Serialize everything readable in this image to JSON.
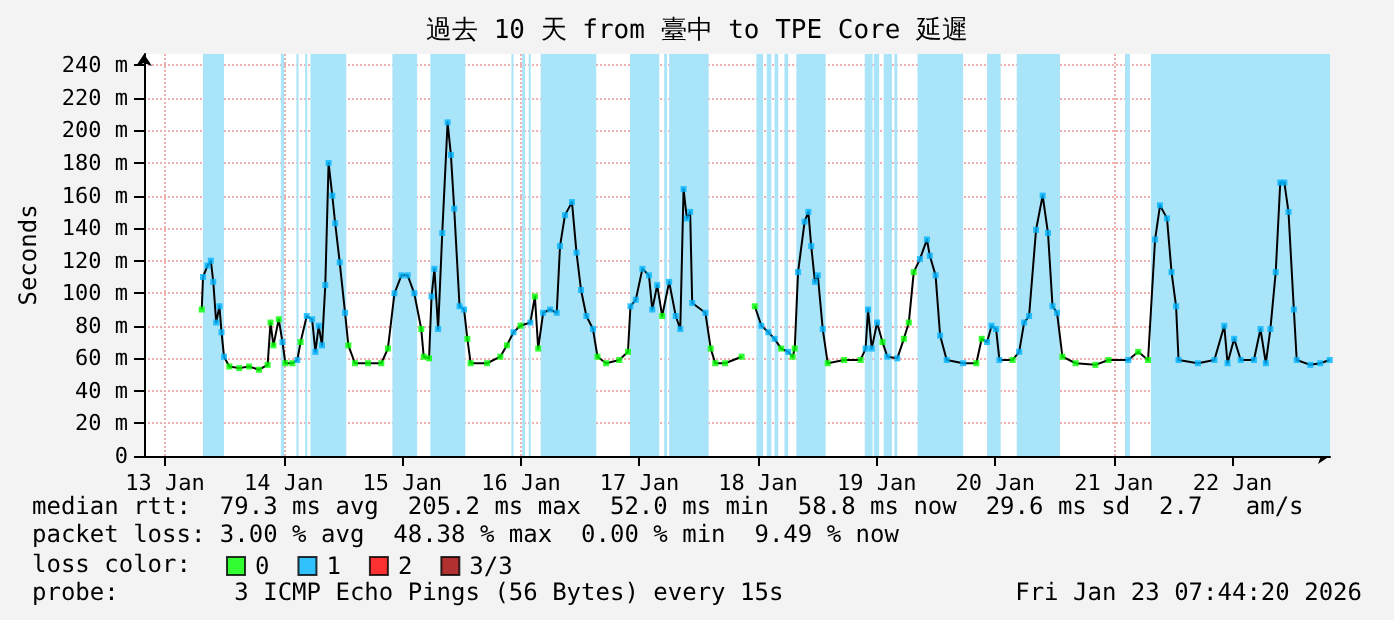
{
  "chart_data": {
    "type": "line",
    "title": "過去 10 天 from 臺中 to TPE Core 延遲",
    "ylabel": "Seconds",
    "legend_title": "loss color:",
    "legend": "bottom left",
    "grid": true,
    "marker": "square",
    "xlim": [
      "2026-01-13T07:44",
      "2026-01-23T07:44"
    ],
    "xticks": [
      {
        "value": "2026-01-13T12:00",
        "label": "13 Jan"
      },
      {
        "value": "2026-01-14T12:00",
        "label": "14 Jan"
      },
      {
        "value": "2026-01-15T12:00",
        "label": "15 Jan"
      },
      {
        "value": "2026-01-16T12:00",
        "label": "16 Jan"
      },
      {
        "value": "2026-01-17T12:00",
        "label": "17 Jan"
      },
      {
        "value": "2026-01-18T12:00",
        "label": "18 Jan"
      },
      {
        "value": "2026-01-19T12:00",
        "label": "19 Jan"
      },
      {
        "value": "2026-01-20T12:00",
        "label": "20 Jan"
      },
      {
        "value": "2026-01-21T12:00",
        "label": "21 Jan"
      },
      {
        "value": "2026-01-22T12:00",
        "label": "22 Jan"
      }
    ],
    "ylim": [
      0,
      247
    ],
    "yticks": [
      0,
      {
        "value": 20,
        "label": "20 m"
      },
      {
        "value": 40,
        "label": "40 m"
      },
      {
        "value": 60,
        "label": "60 m"
      },
      {
        "value": 80,
        "label": "80 m"
      },
      {
        "value": 100,
        "label": "100 m"
      },
      {
        "value": 120,
        "label": "120 m"
      },
      {
        "value": 140,
        "label": "140 m"
      },
      {
        "value": 160,
        "label": "160 m"
      },
      {
        "value": 180,
        "label": "180 m"
      },
      {
        "value": 200,
        "label": "200 m"
      },
      {
        "value": 220,
        "label": "220 m"
      },
      {
        "value": 240,
        "label": "240 m"
      }
    ],
    "annotations": [
      "median rtt:  79.3 ms avg  205.2 ms max  52.0 ms min  58.8 ms now  29.6 ms sd  2.7   am/s",
      "packet loss: 3.00 % avg  48.38 % max  0.00 % min  9.49 % now",
      "probe:        3 ICMP Echo Pings (56 Bytes) every 15s",
      "Fri Jan 23 07:44:20 2026"
    ],
    "x": [
      "2026-01-13T19:25",
      "2026-01-13T19:40",
      "2026-01-13T20:35",
      "2026-01-13T21:15",
      "2026-01-13T21:45",
      "2026-01-13T22:20",
      "2026-01-13T23:00",
      "2026-01-13T23:25",
      "2026-01-13T23:55",
      "2026-01-14T01:00",
      "2026-01-14T03:00",
      "2026-01-14T05:00",
      "2026-01-14T07:00",
      "2026-01-14T08:45",
      "2026-01-14T09:20",
      "2026-01-14T09:55",
      "2026-01-14T11:00",
      "2026-01-14T11:45",
      "2026-01-14T12:20",
      "2026-01-14T13:45",
      "2026-01-14T14:45",
      "2026-01-14T15:25",
      "2026-01-14T16:40",
      "2026-01-14T17:45",
      "2026-01-14T18:25",
      "2026-01-14T19:05",
      "2026-01-14T19:45",
      "2026-01-14T20:25",
      "2026-01-14T21:05",
      "2026-01-14T21:50",
      "2026-01-14T22:25",
      "2026-01-14T23:20",
      "2026-01-15T00:25",
      "2026-01-15T01:05",
      "2026-01-15T02:25",
      "2026-01-15T05:05",
      "2026-01-15T07:45",
      "2026-01-15T09:05",
      "2026-01-15T10:25",
      "2026-01-15T11:50",
      "2026-01-15T13:05",
      "2026-01-15T14:25",
      "2026-01-15T15:50",
      "2026-01-15T16:20",
      "2026-01-15T17:25",
      "2026-01-15T17:55",
      "2026-01-15T18:30",
      "2026-01-15T19:15",
      "2026-01-15T20:05",
      "2026-01-15T21:10",
      "2026-01-15T21:50",
      "2026-01-15T22:30",
      "2026-01-15T23:35",
      "2026-01-16T00:30",
      "2026-01-16T01:10",
      "2026-01-16T01:50",
      "2026-01-16T05:10",
      "2026-01-16T07:50",
      "2026-01-16T09:10",
      "2026-01-16T10:30",
      "2026-01-16T11:55",
      "2026-01-16T13:55",
      "2026-01-16T14:50",
      "2026-01-16T15:30",
      "2026-01-16T16:30",
      "2026-01-16T17:55",
      "2026-01-16T19:15",
      "2026-01-16T19:55",
      "2026-01-16T20:55",
      "2026-01-16T22:20",
      "2026-01-16T23:15",
      "2026-01-17T00:10",
      "2026-01-17T01:15",
      "2026-01-17T02:35",
      "2026-01-17T03:30",
      "2026-01-17T05:15",
      "2026-01-17T07:55",
      "2026-01-17T09:40",
      "2026-01-17T10:10",
      "2026-01-17T11:15",
      "2026-01-17T12:35",
      "2026-01-17T13:55",
      "2026-01-17T14:35",
      "2026-01-17T15:35",
      "2026-01-17T16:35",
      "2026-01-17T18:00",
      "2026-01-17T19:20",
      "2026-01-17T20:15",
      "2026-01-17T20:55",
      "2026-01-17T21:35",
      "2026-01-17T22:15",
      "2026-01-17T22:40",
      "2026-01-18T01:20",
      "2026-01-18T02:25",
      "2026-01-18T03:20",
      "2026-01-18T05:20",
      "2026-01-18T08:40",
      "2026-01-18T09:20",
      "2026-01-18T11:20",
      "2026-01-18T12:40",
      "2026-01-18T14:05",
      "2026-01-18T15:20",
      "2026-01-18T16:40",
      "2026-01-18T18:05",
      "2026-01-18T19:00",
      "2026-01-18T19:25",
      "2026-01-18T20:05",
      "2026-01-18T21:25",
      "2026-01-18T22:10",
      "2026-01-18T22:45",
      "2026-01-18T23:30",
      "2026-01-19T00:05",
      "2026-01-19T01:05",
      "2026-01-19T02:05",
      "2026-01-19T05:25",
      "2026-01-19T08:45",
      "2026-01-19T09:45",
      "2026-01-19T10:15",
      "2026-01-19T11:00",
      "2026-01-19T12:05",
      "2026-01-19T13:10",
      "2026-01-19T14:10",
      "2026-01-19T16:10",
      "2026-01-19T17:30",
      "2026-01-19T18:30",
      "2026-01-19T19:30",
      "2026-01-19T20:45",
      "2026-01-19T22:10",
      "2026-01-19T22:45",
      "2026-01-19T23:55",
      "2026-01-20T00:50",
      "2026-01-20T02:10",
      "2026-01-20T05:30",
      "2026-01-20T08:10",
      "2026-01-20T09:15",
      "2026-01-20T10:20",
      "2026-01-20T11:15",
      "2026-01-20T12:10",
      "2026-01-20T12:50",
      "2026-01-20T15:30",
      "2026-01-20T16:50",
      "2026-01-20T17:50",
      "2026-01-20T18:50",
      "2026-01-20T20:15",
      "2026-01-20T21:35",
      "2026-01-20T22:40",
      "2026-01-20T23:35",
      "2026-01-21T00:30",
      "2026-01-21T01:35",
      "2026-01-21T04:15",
      "2026-01-21T08:15",
      "2026-01-21T10:55",
      "2026-01-21T14:55",
      "2026-01-21T16:55",
      "2026-01-21T18:55",
      "2026-01-21T20:20",
      "2026-01-21T21:20",
      "2026-01-21T22:45",
      "2026-01-21T23:40",
      "2026-01-22T00:35",
      "2026-01-22T01:05",
      "2026-01-22T05:00",
      "2026-01-22T08:20",
      "2026-01-22T10:20",
      "2026-01-22T11:00",
      "2026-01-22T12:20",
      "2026-01-22T13:40",
      "2026-01-22T16:20",
      "2026-01-22T17:40",
      "2026-01-22T18:45",
      "2026-01-22T19:40",
      "2026-01-22T20:45",
      "2026-01-22T21:40",
      "2026-01-22T22:30",
      "2026-01-22T23:20",
      "2026-01-23T00:25",
      "2026-01-23T01:00",
      "2026-01-23T03:45",
      "2026-01-23T05:45",
      "2026-01-23T07:40"
    ],
    "series": [
      {
        "color": "#000000",
        "marker": "none",
        "values": [
          90,
          110,
          117,
          120,
          107,
          82,
          92,
          76,
          61,
          55,
          54,
          55,
          53,
          56,
          82,
          68,
          84,
          70,
          57,
          57,
          59,
          70,
          86,
          84,
          64,
          80,
          68,
          105,
          180,
          160,
          143,
          119,
          88,
          68,
          57,
          57,
          57,
          66,
          100,
          111,
          111,
          100,
          78,
          61,
          60,
          98,
          115,
          78,
          137,
          205,
          185,
          152,
          92,
          90,
          72,
          57,
          57,
          61,
          68,
          76,
          80,
          82,
          98,
          66,
          88,
          90,
          88,
          129,
          148,
          156,
          125,
          102,
          86,
          78,
          61,
          57,
          59,
          64,
          92,
          96,
          115,
          111,
          90,
          105,
          86,
          107,
          86,
          78,
          164,
          146,
          150,
          94,
          88,
          66,
          57,
          57,
          61,
          null,
          92,
          80,
          76,
          72,
          66,
          64,
          61,
          66,
          113,
          144,
          150,
          129,
          107,
          111,
          78,
          57,
          59,
          59,
          66,
          90,
          66,
          82,
          70,
          61,
          60,
          72,
          82,
          113,
          121,
          133,
          123,
          111,
          74,
          59,
          57,
          57,
          72,
          70,
          80,
          78,
          59,
          59,
          64,
          82,
          86,
          139,
          160,
          137,
          92,
          88,
          61,
          57,
          56,
          59,
          59,
          64,
          59,
          133,
          154,
          146,
          113,
          92,
          59,
          57,
          59,
          80,
          57,
          72,
          59,
          59,
          78,
          57,
          78,
          113,
          168,
          168,
          150,
          90,
          59,
          56,
          57,
          59
        ]
      },
      {
        "type": "scatter",
        "name": "0",
        "color": "#00ff00",
        "values": [
          90,
          null,
          null,
          null,
          null,
          null,
          null,
          null,
          null,
          55,
          54,
          55,
          53,
          56,
          82,
          68,
          84,
          null,
          57,
          57,
          null,
          70,
          null,
          null,
          null,
          null,
          null,
          null,
          null,
          null,
          null,
          null,
          null,
          68,
          57,
          57,
          57,
          66,
          null,
          null,
          null,
          null,
          78,
          61,
          60,
          null,
          null,
          null,
          null,
          null,
          null,
          null,
          null,
          null,
          72,
          57,
          57,
          61,
          68,
          null,
          80,
          null,
          98,
          66,
          null,
          null,
          null,
          null,
          null,
          null,
          null,
          null,
          null,
          null,
          61,
          57,
          59,
          64,
          null,
          null,
          null,
          null,
          null,
          null,
          86,
          null,
          null,
          null,
          null,
          null,
          null,
          null,
          null,
          66,
          57,
          57,
          61,
          null,
          92,
          null,
          null,
          null,
          66,
          null,
          61,
          66,
          null,
          null,
          null,
          null,
          null,
          null,
          null,
          57,
          59,
          59,
          null,
          null,
          null,
          null,
          70,
          null,
          null,
          72,
          82,
          113,
          null,
          null,
          null,
          null,
          null,
          null,
          null,
          57,
          72,
          null,
          null,
          null,
          null,
          59,
          null,
          null,
          null,
          null,
          null,
          null,
          null,
          null,
          61,
          57,
          56,
          59,
          null,
          64,
          59,
          null,
          null,
          null,
          null,
          null,
          null,
          null,
          null,
          null,
          null,
          null,
          null,
          null,
          null,
          null,
          null,
          null,
          null,
          null,
          null,
          null,
          null,
          null,
          null,
          null
        ]
      },
      {
        "type": "scatter",
        "name": "1",
        "color": "#00b4ff",
        "values": [
          null,
          110,
          117,
          120,
          107,
          82,
          92,
          76,
          61,
          null,
          null,
          null,
          null,
          null,
          null,
          null,
          null,
          70,
          null,
          null,
          59,
          null,
          86,
          84,
          64,
          80,
          68,
          105,
          180,
          160,
          143,
          119,
          88,
          null,
          null,
          null,
          null,
          null,
          100,
          111,
          111,
          100,
          null,
          null,
          null,
          98,
          115,
          78,
          137,
          205,
          185,
          152,
          92,
          90,
          null,
          null,
          null,
          null,
          null,
          76,
          null,
          82,
          null,
          null,
          88,
          90,
          88,
          129,
          148,
          156,
          125,
          102,
          86,
          78,
          null,
          null,
          null,
          null,
          92,
          96,
          115,
          111,
          90,
          105,
          null,
          107,
          86,
          78,
          164,
          146,
          150,
          94,
          88,
          null,
          null,
          null,
          null,
          null,
          null,
          80,
          76,
          72,
          null,
          64,
          null,
          null,
          113,
          144,
          150,
          129,
          107,
          111,
          78,
          null,
          null,
          null,
          66,
          90,
          66,
          82,
          null,
          61,
          60,
          null,
          null,
          null,
          121,
          133,
          123,
          111,
          74,
          59,
          57,
          null,
          null,
          70,
          80,
          78,
          59,
          null,
          64,
          82,
          86,
          139,
          160,
          137,
          92,
          88,
          null,
          null,
          null,
          null,
          59,
          null,
          null,
          133,
          154,
          146,
          113,
          92,
          59,
          57,
          59,
          80,
          57,
          72,
          59,
          59,
          78,
          57,
          78,
          113,
          168,
          168,
          150,
          90,
          59,
          56,
          57,
          59
        ]
      },
      {
        "type": "scatter",
        "name": "2",
        "color": "#ff0000",
        "values": [
          null,
          null,
          null,
          null,
          null,
          null,
          null,
          null,
          null,
          null,
          null,
          null,
          null,
          null,
          null,
          null,
          null,
          null,
          null,
          null,
          null,
          null,
          null,
          null,
          null,
          null,
          null,
          null,
          null,
          null,
          null,
          null,
          null,
          null,
          null,
          null,
          null,
          null,
          null,
          null,
          null,
          null,
          null,
          null,
          null,
          null,
          null,
          null,
          null,
          null,
          null,
          null,
          null,
          null,
          null,
          null,
          null,
          null,
          null,
          null,
          null,
          null,
          null,
          null,
          null,
          null,
          null,
          null,
          null,
          null,
          null,
          null,
          null,
          null,
          null,
          null,
          null,
          null,
          null,
          null,
          null,
          null,
          null,
          null,
          null,
          null,
          null,
          null,
          null,
          null,
          null,
          null,
          null,
          null,
          null,
          null,
          null,
          null,
          null,
          null,
          null,
          null,
          null,
          null,
          null,
          null,
          null,
          null,
          null,
          null,
          null,
          null,
          null,
          null,
          null,
          null,
          null,
          null,
          null,
          null,
          null,
          null,
          null,
          null,
          null,
          null,
          null,
          null,
          null,
          null,
          null,
          null,
          null,
          null,
          null,
          null,
          null,
          null,
          null,
          null,
          null,
          null,
          null,
          null,
          null,
          null,
          null,
          null,
          null,
          null,
          null,
          null,
          null,
          null,
          null,
          null,
          null,
          null,
          null,
          null,
          null,
          null,
          null,
          null,
          null,
          null,
          null,
          null,
          null,
          null,
          null,
          null,
          null,
          null,
          null,
          null,
          null,
          null,
          null,
          null
        ]
      },
      {
        "type": "scatter",
        "name": "3/3",
        "color": "#a00000",
        "values": [
          null,
          null,
          null,
          null,
          null,
          null,
          null,
          null,
          null,
          null,
          null,
          null,
          null,
          null,
          null,
          null,
          null,
          null,
          null,
          null,
          null,
          null,
          null,
          null,
          null,
          null,
          null,
          null,
          null,
          null,
          null,
          null,
          null,
          null,
          null,
          null,
          null,
          null,
          null,
          null,
          null,
          null,
          null,
          null,
          null,
          null,
          null,
          null,
          null,
          null,
          null,
          null,
          null,
          null,
          null,
          null,
          null,
          null,
          null,
          null,
          null,
          null,
          null,
          null,
          null,
          null,
          null,
          null,
          null,
          null,
          null,
          null,
          null,
          null,
          null,
          null,
          null,
          null,
          null,
          null,
          null,
          null,
          null,
          null,
          null,
          null,
          null,
          null,
          null,
          null,
          null,
          null,
          null,
          null,
          null,
          null,
          null,
          null,
          null,
          null,
          null,
          null,
          null,
          null,
          null,
          null,
          null,
          null,
          null,
          null,
          null,
          null,
          null,
          null,
          null,
          null,
          null,
          null,
          null,
          null,
          null,
          null,
          null,
          null,
          null,
          null,
          null,
          null,
          null,
          null,
          null,
          null,
          null,
          null,
          null,
          null,
          null,
          null,
          null,
          null,
          null,
          null,
          null,
          null,
          null,
          null,
          null,
          null,
          null,
          null,
          null,
          null,
          null,
          null,
          null,
          null,
          null,
          null,
          null,
          null,
          null,
          null,
          null,
          null,
          null,
          null,
          null,
          null,
          null,
          null,
          null,
          null,
          null,
          null,
          null,
          null,
          null,
          null,
          null,
          null
        ]
      }
    ],
    "bands": [
      {
        "axis": "x",
        "from": "2026-01-13T19:40",
        "to": "2026-01-13T23:55",
        "color": "#aae4f8"
      },
      {
        "axis": "x",
        "from": "2026-01-14T11:25",
        "to": "2026-01-14T12:05",
        "color": "#aae4f8"
      },
      {
        "axis": "x",
        "from": "2026-01-14T14:35",
        "to": "2026-01-14T15:00",
        "color": "#aae4f8"
      },
      {
        "axis": "x",
        "from": "2026-01-14T16:20",
        "to": "2026-01-14T16:45",
        "color": "#aae4f8"
      },
      {
        "axis": "x",
        "from": "2026-01-14T17:25",
        "to": "2026-01-15T00:40",
        "color": "#aae4f8"
      },
      {
        "axis": "x",
        "from": "2026-01-15T10:00",
        "to": "2026-01-15T15:00",
        "color": "#aae4f8"
      },
      {
        "axis": "x",
        "from": "2026-01-15T17:40",
        "to": "2026-01-16T00:45",
        "color": "#aae4f8"
      },
      {
        "axis": "x",
        "from": "2026-01-16T10:05",
        "to": "2026-01-16T10:30",
        "color": "#aae4f8"
      },
      {
        "axis": "x",
        "from": "2026-01-16T12:15",
        "to": "2026-01-16T12:50",
        "color": "#aae4f8"
      },
      {
        "axis": "x",
        "from": "2026-01-16T13:35",
        "to": "2026-01-16T14:00",
        "color": "#aae4f8"
      },
      {
        "axis": "x",
        "from": "2026-01-16T16:00",
        "to": "2026-01-17T03:15",
        "color": "#aae4f8"
      },
      {
        "axis": "x",
        "from": "2026-01-17T10:05",
        "to": "2026-01-17T16:00",
        "color": "#aae4f8"
      },
      {
        "axis": "x",
        "from": "2026-01-17T17:00",
        "to": "2026-01-17T17:35",
        "color": "#aae4f8"
      },
      {
        "axis": "x",
        "from": "2026-01-17T18:00",
        "to": "2026-01-18T02:00",
        "color": "#aae4f8"
      },
      {
        "axis": "x",
        "from": "2026-01-18T11:40",
        "to": "2026-01-18T13:00",
        "color": "#aae4f8"
      },
      {
        "axis": "x",
        "from": "2026-01-18T13:45",
        "to": "2026-01-18T14:40",
        "color": "#aae4f8"
      },
      {
        "axis": "x",
        "from": "2026-01-18T15:20",
        "to": "2026-01-18T16:05",
        "color": "#aae4f8"
      },
      {
        "axis": "x",
        "from": "2026-01-18T17:20",
        "to": "2026-01-18T18:05",
        "color": "#aae4f8"
      },
      {
        "axis": "x",
        "from": "2026-01-18T19:45",
        "to": "2026-01-19T01:40",
        "color": "#aae4f8"
      },
      {
        "axis": "x",
        "from": "2026-01-19T09:35",
        "to": "2026-01-19T11:10",
        "color": "#aae4f8"
      },
      {
        "axis": "x",
        "from": "2026-01-19T11:25",
        "to": "2026-01-19T12:30",
        "color": "#aae4f8"
      },
      {
        "axis": "x",
        "from": "2026-01-19T13:25",
        "to": "2026-01-19T15:05",
        "color": "#aae4f8"
      },
      {
        "axis": "x",
        "from": "2026-01-19T15:35",
        "to": "2026-01-19T16:10",
        "color": "#aae4f8"
      },
      {
        "axis": "x",
        "from": "2026-01-19T20:15",
        "to": "2026-01-20T05:30",
        "color": "#aae4f8"
      },
      {
        "axis": "x",
        "from": "2026-01-20T10:20",
        "to": "2026-01-20T13:05",
        "color": "#aae4f8"
      },
      {
        "axis": "x",
        "from": "2026-01-20T16:20",
        "to": "2026-01-21T01:05",
        "color": "#aae4f8"
      },
      {
        "axis": "x",
        "from": "2026-01-21T14:15",
        "to": "2026-01-21T15:15",
        "color": "#aae4f8"
      },
      {
        "axis": "x",
        "from": "2026-01-21T19:30",
        "to": "2026-01-23T07:44",
        "color": "#aae4f8"
      }
    ]
  }
}
